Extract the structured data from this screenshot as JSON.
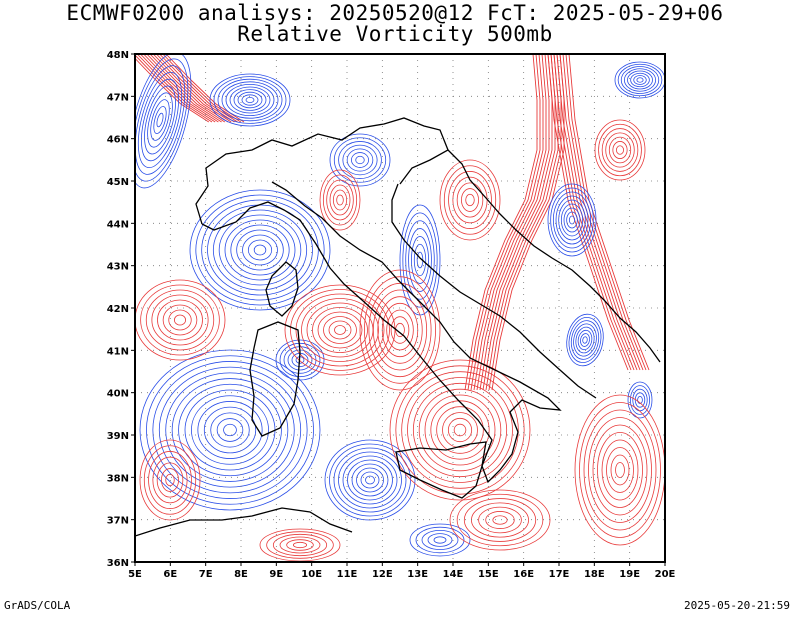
{
  "header": {
    "title_line1": "ECMWF0200 analisys: 20250520@12 FcT: 2025-05-29+06",
    "title_line2": "Relative Vorticity 500mb"
  },
  "footer": {
    "left": "GrADS/COLA",
    "right": "2025-05-20-21:59"
  },
  "map": {
    "lat_labels": [
      "48N",
      "47N",
      "46N",
      "45N",
      "44N",
      "43N",
      "42N",
      "41N",
      "40N",
      "39N",
      "38N",
      "37N",
      "36N"
    ],
    "lon_labels": [
      "5E",
      "6E",
      "7E",
      "8E",
      "9E",
      "10E",
      "11E",
      "12E",
      "13E",
      "14E",
      "15E",
      "16E",
      "17E",
      "18E",
      "19E",
      "20E"
    ],
    "lat_range": [
      36,
      48
    ],
    "lon_range": [
      5,
      20
    ],
    "colors": {
      "positive_contour": "#e83a3a",
      "negative_contour": "#2a4ee8",
      "coastline": "#000000",
      "grid": "#777777"
    }
  }
}
